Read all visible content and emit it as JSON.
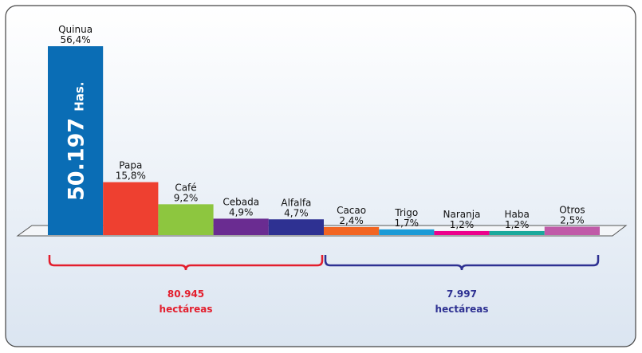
{
  "chart_data": {
    "type": "bar",
    "categories": [
      "Quinua",
      "Papa",
      "Café",
      "Cebada",
      "Alfalfa",
      "Cacao",
      "Trigo",
      "Naranja",
      "Haba",
      "Otros"
    ],
    "values": [
      56.4,
      15.8,
      9.2,
      4.9,
      4.7,
      2.4,
      1.7,
      1.2,
      1.2,
      2.5
    ],
    "value_labels": [
      "56,4%",
      "15,8%",
      "9,2%",
      "4,9%",
      "4,7%",
      "2,4%",
      "1,7%",
      "1,2%",
      "1,2%",
      "2,5%"
    ],
    "colors": [
      "#0a6db5",
      "#ee4030",
      "#8dc63f",
      "#6a2c91",
      "#2e3192",
      "#f26522",
      "#1b9ad6",
      "#ec008c",
      "#1aa99c",
      "#c05aa8"
    ],
    "annotations": {
      "bar_text": {
        "value": "50.197",
        "unit": "Has."
      },
      "groups": [
        {
          "total": "80.945",
          "unit": "hectáreas",
          "color": "#e31e2d"
        },
        {
          "total": "7.997",
          "unit": "hectáreas",
          "color": "#2e3192"
        }
      ]
    }
  }
}
